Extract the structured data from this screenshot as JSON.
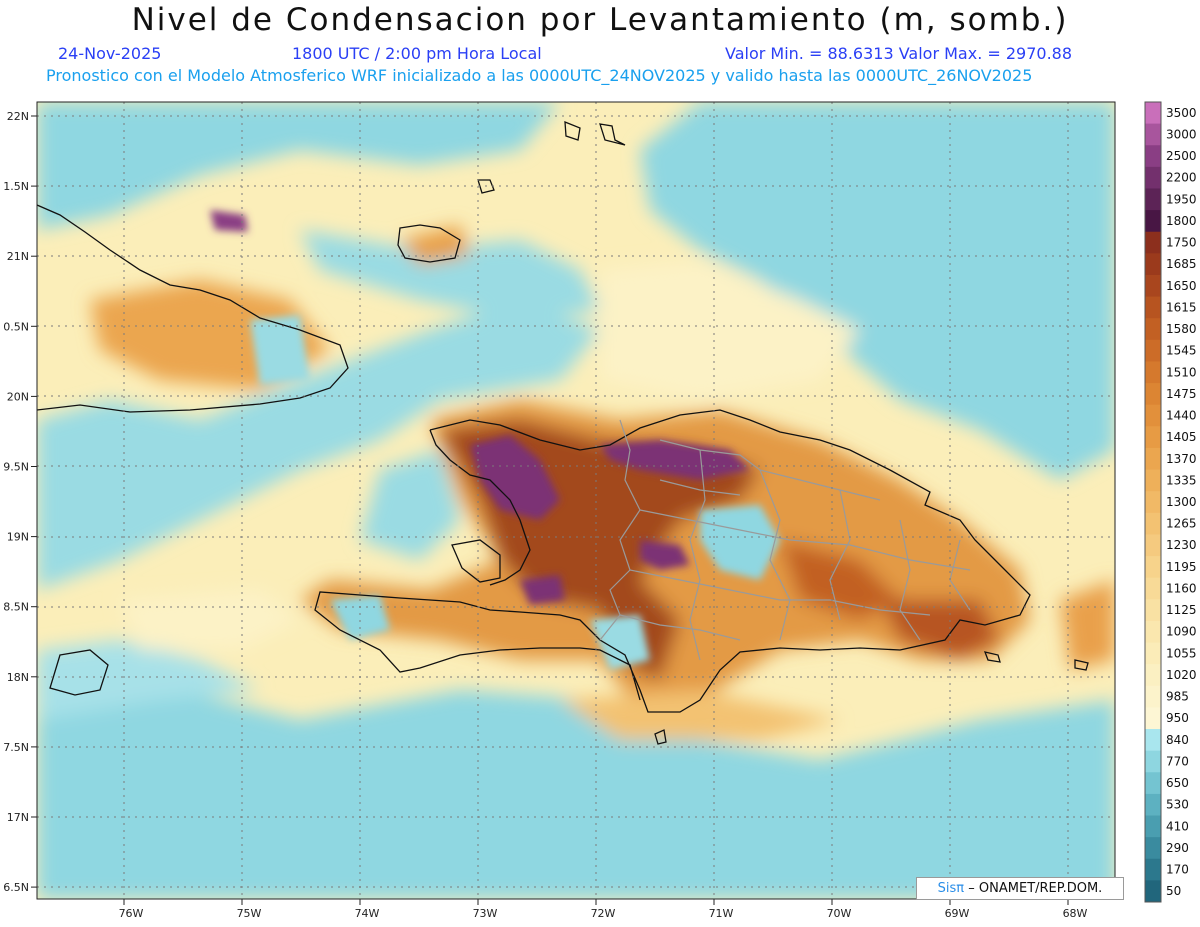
{
  "header": {
    "title": "Nivel de Condensacion por Levantamiento (m, somb.)",
    "date": "24-Nov-2025",
    "time": "1800 UTC / 2:00 pm Hora Local",
    "minmax": "Valor Min. = 88.6313  Valor Max. = 2970.88",
    "description": "Pronostico con el Modelo Atmosferico WRF inicializado a las 0000UTC_24NOV2025 y valido hasta las  0000UTC_26NOV2025"
  },
  "axes": {
    "lat_labels": [
      "22N",
      "1.5N",
      "21N",
      "0.5N",
      "20N",
      "9.5N",
      "19N",
      "8.5N",
      "18N",
      "7.5N",
      "17N",
      "6.5N"
    ],
    "lon_labels": [
      "76W",
      "75W",
      "74W",
      "73W",
      "72W",
      "71W",
      "70W",
      "69W",
      "68W"
    ]
  },
  "colorbar": {
    "labels": [
      "3500",
      "3000",
      "2500",
      "2200",
      "1950",
      "1800",
      "1750",
      "1685",
      "1650",
      "1615",
      "1580",
      "1545",
      "1510",
      "1475",
      "1440",
      "1405",
      "1370",
      "1335",
      "1300",
      "1265",
      "1230",
      "1195",
      "1160",
      "1125",
      "1090",
      "1055",
      "1020",
      "985",
      "950",
      "840",
      "770",
      "650",
      "530",
      "410",
      "290",
      "170",
      "50"
    ],
    "colors": [
      "#c96fba",
      "#a8559d",
      "#8a3e84",
      "#73306d",
      "#5c2356",
      "#481644",
      "#8c2f1d",
      "#9b3a1c",
      "#a9461e",
      "#b75420",
      "#c26023",
      "#cc6c28",
      "#d5792d",
      "#dc8533",
      "#e2903b",
      "#e79b44",
      "#eba64f",
      "#eeb05a",
      "#f1b966",
      "#f3c272",
      "#f5ca7f",
      "#f7d38b",
      "#f8da97",
      "#f9e1a3",
      "#fae7ae",
      "#fbecb8",
      "#fbf0c2",
      "#fcf3cb",
      "#fdf6d4",
      "#a9e6ee",
      "#8ed6e0",
      "#74c4d1",
      "#5db1c1",
      "#4a9eb0",
      "#3a8b9f",
      "#2c788d",
      "#21667c"
    ]
  },
  "credit": {
    "sis": "Sisπ",
    "text": "– ONAMET/REP.DOM."
  },
  "colors": {
    "sea_low": "#8fd7e1",
    "mid_yellow": "#fdf2c3",
    "orange": "#e39a45",
    "brown": "#a34a1e",
    "purple": "#7b3374"
  }
}
